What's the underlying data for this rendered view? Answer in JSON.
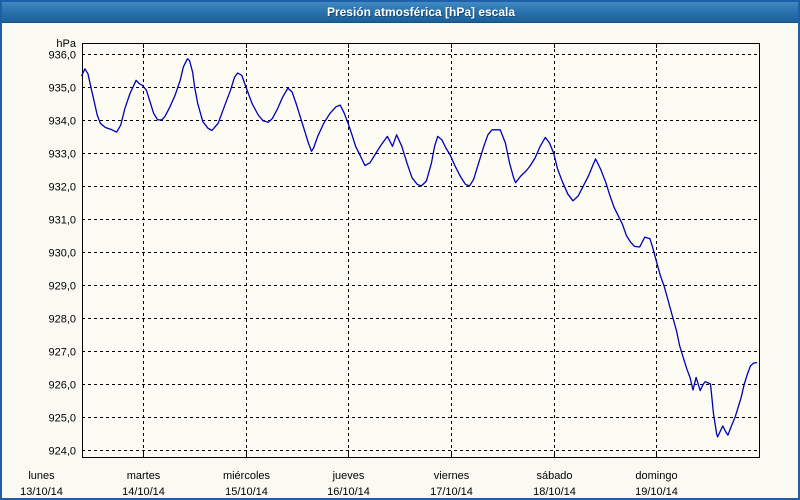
{
  "window": {
    "title": "Presión atmosférica [hPa] escala"
  },
  "colors": {
    "titlebar_top": "#4189c2",
    "titlebar_bottom": "#1d6097",
    "title_text": "#ffffff",
    "window_border": "#1d60a8",
    "background": "#fafaf2",
    "plot_background": "#fcfcf5",
    "axis": "#000000",
    "grid": "#000000",
    "text": "#000000",
    "line": "#0000b4"
  },
  "chart_data": {
    "type": "line",
    "title": "Presión atmosférica [hPa] escala",
    "ylabel": "hPa",
    "grid": true,
    "legend": "none",
    "ylim": [
      923.76,
      936.33
    ],
    "xlim_days": [
      0.402,
      7.013
    ],
    "y_ticks": [
      {
        "value": 936,
        "label": "936,0"
      },
      {
        "value": 935,
        "label": "935,0"
      },
      {
        "value": 934,
        "label": "934,0"
      },
      {
        "value": 933,
        "label": "933,0"
      },
      {
        "value": 932,
        "label": "932,0"
      },
      {
        "value": 931,
        "label": "931,0"
      },
      {
        "value": 930,
        "label": "930,0"
      },
      {
        "value": 929,
        "label": "929,0"
      },
      {
        "value": 928,
        "label": "928,0"
      },
      {
        "value": 927,
        "label": "927,0"
      },
      {
        "value": 926,
        "label": "926,0"
      },
      {
        "value": 925,
        "label": "925,0"
      },
      {
        "value": 924,
        "label": "924,0"
      }
    ],
    "x_ticks": [
      {
        "day": 0,
        "weekday": "lunes",
        "date": "13/10/14"
      },
      {
        "day": 1,
        "weekday": "martes",
        "date": "14/10/14"
      },
      {
        "day": 2,
        "weekday": "miércoles",
        "date": "15/10/14"
      },
      {
        "day": 3,
        "weekday": "jueves",
        "date": "16/10/14"
      },
      {
        "day": 4,
        "weekday": "viernes",
        "date": "17/10/14"
      },
      {
        "day": 5,
        "weekday": "sábado",
        "date": "18/10/14"
      },
      {
        "day": 6,
        "weekday": "domingo",
        "date": "19/10/14"
      }
    ],
    "series": [
      {
        "name": "Presión atmosférica",
        "unit": "hPa",
        "color": "#0000b4",
        "points": [
          [
            0.4,
            935.35
          ],
          [
            0.43,
            935.55
          ],
          [
            0.46,
            935.4
          ],
          [
            0.51,
            934.7
          ],
          [
            0.55,
            934.15
          ],
          [
            0.58,
            933.9
          ],
          [
            0.63,
            933.77
          ],
          [
            0.68,
            933.72
          ],
          [
            0.74,
            933.63
          ],
          [
            0.78,
            933.85
          ],
          [
            0.82,
            934.35
          ],
          [
            0.87,
            934.8
          ],
          [
            0.93,
            935.2
          ],
          [
            0.96,
            935.1
          ],
          [
            0.99,
            935.05
          ],
          [
            1.03,
            934.9
          ],
          [
            1.06,
            934.6
          ],
          [
            1.1,
            934.2
          ],
          [
            1.14,
            934.0
          ],
          [
            1.18,
            934.0
          ],
          [
            1.21,
            934.1
          ],
          [
            1.26,
            934.4
          ],
          [
            1.31,
            934.75
          ],
          [
            1.36,
            935.2
          ],
          [
            1.39,
            935.6
          ],
          [
            1.43,
            935.85
          ],
          [
            1.45,
            935.8
          ],
          [
            1.48,
            935.45
          ],
          [
            1.5,
            935.0
          ],
          [
            1.53,
            934.5
          ],
          [
            1.58,
            933.95
          ],
          [
            1.63,
            933.75
          ],
          [
            1.67,
            933.68
          ],
          [
            1.73,
            933.9
          ],
          [
            1.79,
            934.4
          ],
          [
            1.85,
            934.9
          ],
          [
            1.89,
            935.3
          ],
          [
            1.92,
            935.42
          ],
          [
            1.96,
            935.35
          ],
          [
            2.0,
            935.0
          ],
          [
            2.06,
            934.5
          ],
          [
            2.12,
            934.15
          ],
          [
            2.17,
            933.97
          ],
          [
            2.22,
            933.93
          ],
          [
            2.26,
            934.05
          ],
          [
            2.31,
            934.35
          ],
          [
            2.36,
            934.7
          ],
          [
            2.41,
            934.96
          ],
          [
            2.45,
            934.85
          ],
          [
            2.49,
            934.5
          ],
          [
            2.53,
            934.1
          ],
          [
            2.57,
            933.7
          ],
          [
            2.61,
            933.3
          ],
          [
            2.64,
            933.05
          ],
          [
            2.66,
            933.15
          ],
          [
            2.7,
            933.5
          ],
          [
            2.76,
            933.9
          ],
          [
            2.82,
            934.2
          ],
          [
            2.88,
            934.4
          ],
          [
            2.92,
            934.45
          ],
          [
            2.96,
            934.2
          ],
          [
            3.0,
            933.87
          ],
          [
            3.04,
            933.5
          ],
          [
            3.07,
            933.2
          ],
          [
            3.11,
            932.95
          ],
          [
            3.16,
            932.62
          ],
          [
            3.21,
            932.7
          ],
          [
            3.27,
            933.0
          ],
          [
            3.32,
            933.25
          ],
          [
            3.38,
            933.5
          ],
          [
            3.43,
            933.2
          ],
          [
            3.47,
            933.55
          ],
          [
            3.52,
            933.2
          ],
          [
            3.57,
            932.7
          ],
          [
            3.62,
            932.25
          ],
          [
            3.67,
            932.05
          ],
          [
            3.71,
            932.0
          ],
          [
            3.76,
            932.15
          ],
          [
            3.81,
            932.7
          ],
          [
            3.84,
            933.2
          ],
          [
            3.87,
            933.5
          ],
          [
            3.91,
            933.4
          ],
          [
            3.95,
            933.15
          ],
          [
            3.99,
            932.95
          ],
          [
            4.04,
            932.6
          ],
          [
            4.09,
            932.3
          ],
          [
            4.14,
            932.05
          ],
          [
            4.18,
            932.0
          ],
          [
            4.22,
            932.2
          ],
          [
            4.27,
            932.7
          ],
          [
            4.32,
            933.2
          ],
          [
            4.36,
            933.55
          ],
          [
            4.4,
            933.7
          ],
          [
            4.48,
            933.7
          ],
          [
            4.53,
            933.3
          ],
          [
            4.57,
            932.7
          ],
          [
            4.61,
            932.25
          ],
          [
            4.63,
            932.1
          ],
          [
            4.68,
            932.3
          ],
          [
            4.73,
            932.45
          ],
          [
            4.77,
            932.6
          ],
          [
            4.82,
            932.85
          ],
          [
            4.87,
            933.2
          ],
          [
            4.92,
            933.47
          ],
          [
            4.96,
            933.3
          ],
          [
            5.0,
            933.0
          ],
          [
            5.04,
            932.5
          ],
          [
            5.09,
            932.1
          ],
          [
            5.14,
            931.75
          ],
          [
            5.19,
            931.55
          ],
          [
            5.24,
            931.7
          ],
          [
            5.29,
            932.0
          ],
          [
            5.34,
            932.3
          ],
          [
            5.38,
            932.6
          ],
          [
            5.41,
            932.82
          ],
          [
            5.46,
            932.5
          ],
          [
            5.51,
            932.1
          ],
          [
            5.55,
            931.7
          ],
          [
            5.59,
            931.35
          ],
          [
            5.63,
            931.1
          ],
          [
            5.67,
            930.85
          ],
          [
            5.71,
            930.5
          ],
          [
            5.75,
            930.3
          ],
          [
            5.79,
            930.17
          ],
          [
            5.84,
            930.15
          ],
          [
            5.89,
            930.45
          ],
          [
            5.94,
            930.4
          ],
          [
            5.97,
            930.1
          ],
          [
            6.0,
            929.75
          ],
          [
            6.04,
            929.3
          ],
          [
            6.08,
            928.95
          ],
          [
            6.12,
            928.5
          ],
          [
            6.16,
            928.05
          ],
          [
            6.2,
            927.6
          ],
          [
            6.23,
            927.15
          ],
          [
            6.27,
            926.75
          ],
          [
            6.3,
            926.45
          ],
          [
            6.33,
            926.2
          ],
          [
            6.36,
            925.82
          ],
          [
            6.39,
            926.2
          ],
          [
            6.43,
            925.8
          ],
          [
            6.46,
            926.0
          ],
          [
            6.48,
            926.07
          ],
          [
            6.53,
            926.0
          ],
          [
            6.56,
            925.1
          ],
          [
            6.59,
            924.5
          ],
          [
            6.6,
            924.4
          ],
          [
            6.63,
            924.6
          ],
          [
            6.65,
            924.73
          ],
          [
            6.68,
            924.55
          ],
          [
            6.7,
            924.45
          ],
          [
            6.73,
            924.7
          ],
          [
            6.77,
            925.0
          ],
          [
            6.8,
            925.3
          ],
          [
            6.83,
            925.6
          ],
          [
            6.86,
            926.0
          ],
          [
            6.89,
            926.3
          ],
          [
            6.92,
            926.55
          ],
          [
            6.95,
            926.63
          ],
          [
            6.98,
            926.65
          ]
        ]
      }
    ]
  }
}
